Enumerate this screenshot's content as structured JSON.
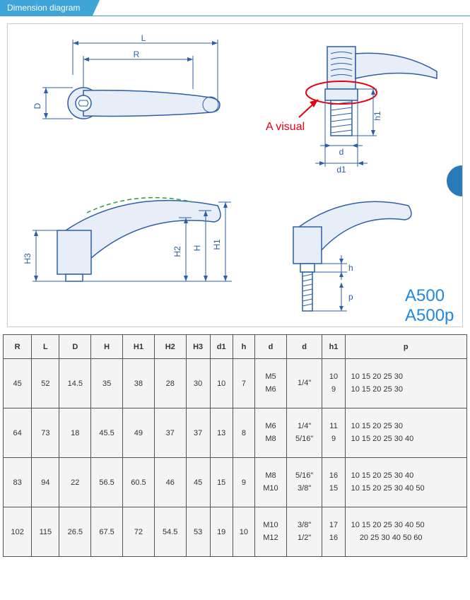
{
  "tab": {
    "label": "Dimension diagram"
  },
  "diagram": {
    "annotation": "A visual",
    "model1": "A500",
    "model2": "A500p",
    "dims": {
      "L": "L",
      "R": "R",
      "D": "D",
      "H": "H",
      "H1": "H1",
      "H2": "H2",
      "H3": "H3",
      "d": "d",
      "d1": "d1",
      "h": "h",
      "h1": "h1",
      "p": "p"
    },
    "colors": {
      "line": "#2b5fab",
      "fill": "#e8eef7",
      "accent": "#3fa4d8",
      "red": "#e60012",
      "model": "#1e88e5"
    }
  },
  "table": {
    "columns": [
      "R",
      "L",
      "D",
      "H",
      "H1",
      "H2",
      "H3",
      "d1",
      "h",
      "d",
      "d",
      "h1",
      "p"
    ],
    "rows": [
      {
        "R": "45",
        "L": "52",
        "D": "14.5",
        "H": "35",
        "H1": "38",
        "H2": "28",
        "H3": "30",
        "d1": "10",
        "h": "7",
        "d_m": [
          "M5",
          "M6"
        ],
        "d_i": [
          "",
          "1/4\""
        ],
        "h1": [
          "10",
          "9"
        ],
        "p": [
          "10 15 20 25 30",
          "10 15 20 25 30"
        ]
      },
      {
        "R": "64",
        "L": "73",
        "D": "18",
        "H": "45.5",
        "H1": "49",
        "H2": "37",
        "H3": "37",
        "d1": "13",
        "h": "8",
        "d_m": [
          "M6",
          "M8"
        ],
        "d_i": [
          "1/4\"",
          "5/16\""
        ],
        "h1": [
          "11",
          "9"
        ],
        "p": [
          "10 15 20 25 30",
          "10 15 20 25 30 40"
        ]
      },
      {
        "R": "83",
        "L": "94",
        "D": "22",
        "H": "56.5",
        "H1": "60.5",
        "H2": "46",
        "H3": "45",
        "d1": "15",
        "h": "9",
        "d_m": [
          "M8",
          "M10"
        ],
        "d_i": [
          "5/16\"",
          "3/8\""
        ],
        "h1": [
          "16",
          "15"
        ],
        "p": [
          "10 15 20 25 30 40",
          "10 15 20 25 30 40 50"
        ]
      },
      {
        "R": "102",
        "L": "115",
        "D": "26.5",
        "H": "67.5",
        "H1": "72",
        "H2": "54.5",
        "H3": "53",
        "d1": "19",
        "h": "10",
        "d_m": [
          "M10",
          "M12"
        ],
        "d_i": [
          "3/8\"",
          "1/2\""
        ],
        "h1": [
          "17",
          "16"
        ],
        "p": [
          "10 15 20 25 30 40 50",
          "    20 25 30 40 50 60"
        ]
      }
    ]
  }
}
